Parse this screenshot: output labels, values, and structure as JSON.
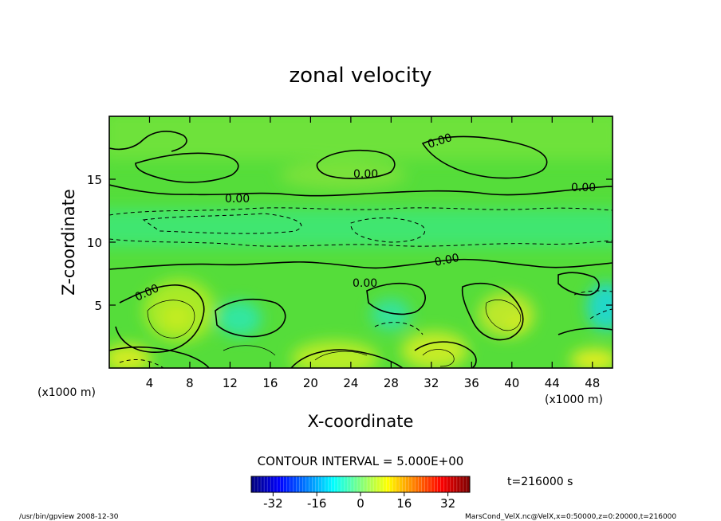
{
  "chart_data": {
    "type": "heatmap",
    "title": "zonal velocity",
    "xlabel": "X-coordinate",
    "ylabel": "Z-coordinate",
    "x_unit_left": "(x1000 m)",
    "x_unit_right": "(x1000 m)",
    "xlim": [
      0,
      50
    ],
    "ylim": [
      0,
      20
    ],
    "x_ticks": [
      4,
      8,
      12,
      16,
      20,
      24,
      28,
      32,
      36,
      40,
      44,
      48
    ],
    "y_ticks": [
      5,
      10,
      15
    ],
    "contour_labels": [
      "0.00",
      "0.00",
      "0.00",
      "0.00",
      "0.00",
      "0.00",
      "0.00"
    ],
    "contour_interval": "CONTOUR INTERVAL = 5.000E+00",
    "time_label": "t=216000 s",
    "colorbar": {
      "min": -40,
      "max": 40,
      "tick_labels": [
        "-32",
        "-16",
        "0",
        "16",
        "32"
      ],
      "tick_values": [
        -32,
        -16,
        0,
        16,
        32
      ]
    },
    "grid": false,
    "legend": "colorbar-bottom"
  },
  "footer": {
    "left": "/usr/bin/gpview  2008-12-30",
    "right": "MarsCond_VelX.nc@VelX,x=0:50000,z=0:20000,t=216000"
  }
}
